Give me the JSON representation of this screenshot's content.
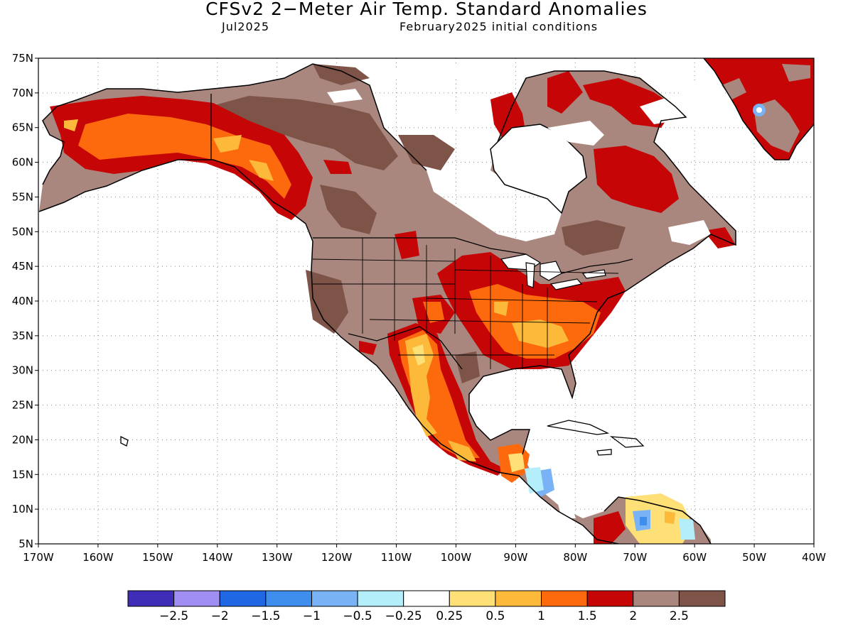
{
  "title": "CFSv2 2−Meter Air Temp. Standard Anomalies",
  "valid_month": "Jul2025",
  "initial_conditions": "February2025 initial conditions",
  "lat_labels": [
    "5N",
    "10N",
    "15N",
    "20N",
    "25N",
    "30N",
    "35N",
    "40N",
    "45N",
    "50N",
    "55N",
    "60N",
    "65N",
    "70N",
    "75N"
  ],
  "lon_labels": [
    "170W",
    "160W",
    "150W",
    "140W",
    "130W",
    "120W",
    "110W",
    "100W",
    "90W",
    "80W",
    "70W",
    "60W",
    "50W",
    "40W"
  ],
  "colorbar": {
    "colors": [
      "#3f2db8",
      "#a08ef3",
      "#1f67e3",
      "#3e8fed",
      "#79b3f5",
      "#b4eefa",
      "#ffffff",
      "#fee077",
      "#fdb93a",
      "#fd6a0e",
      "#c50506",
      "#aa877e",
      "#7e5448"
    ],
    "tick_labels": [
      "−2.5",
      "−2",
      "−1.5",
      "−1",
      "−0.5",
      "−0.25",
      "0.25",
      "0.5",
      "1",
      "1.5",
      "2",
      "2.5"
    ]
  },
  "palette": {
    "brown_light": "#aa877e",
    "brown_dark": "#7e5448",
    "red": "#c50506",
    "orange": "#fd6a0e",
    "orange_light": "#fdb93a",
    "yellow": "#fee077",
    "blue_light": "#79b3f5",
    "blue": "#3e8fed",
    "cyan": "#b4eefa"
  }
}
